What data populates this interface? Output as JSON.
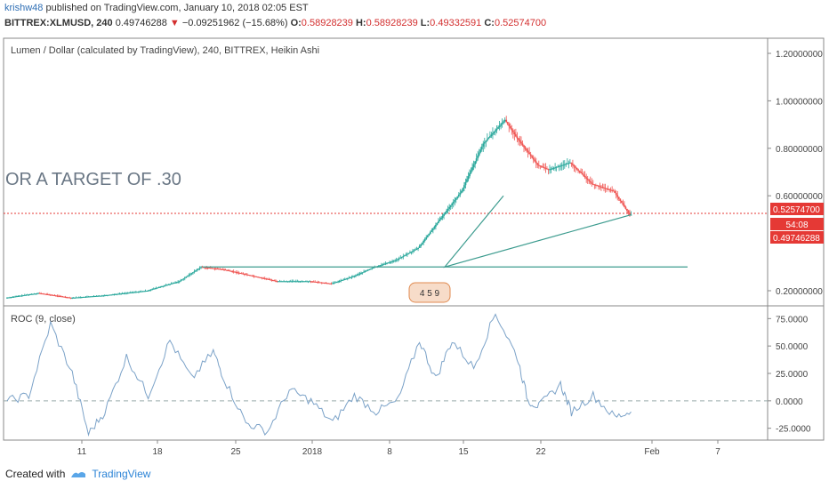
{
  "header": {
    "author": "krishw48",
    "published": "published on TradingView.com, January 10, 2018 02:05 EST",
    "symbol": "BITTREX:XLMUSD, 240",
    "last": "0.49746288",
    "change": "−0.09251962 (−15.68%)",
    "o_label": "O:",
    "o": "0.58928239",
    "h_label": "H:",
    "h": "0.58928239",
    "l_label": "L:",
    "l": "0.49332591",
    "c_label": "C:",
    "c": "0.52574700"
  },
  "colors": {
    "up": "#26a69a",
    "down": "#ef5350",
    "line": "#3d9c8f",
    "roc": "#7ba2c8",
    "price_line": "#e53935"
  },
  "overlay_text": "OR A TARGET OF .30",
  "footer": {
    "created_with": "Created with",
    "brand": "TradingView"
  },
  "chart_data": [
    {
      "type": "candlestick",
      "title": "Lumen / Dollar (calculated by TradingView), 240, BITTREX, Heikin Ashi",
      "y_ticks": [
        "1.20000000",
        "1.00000000",
        "0.80000000",
        "0.60000000",
        "0.20000000"
      ],
      "ylim": [
        0.14,
        1.26
      ],
      "x_ticks": [
        "11",
        "18",
        "25",
        "2018",
        "8",
        "15",
        "22",
        "Feb",
        "7"
      ],
      "price_labels": {
        "close": "0.52574700",
        "countdown": "54:08",
        "last": "0.49746288"
      },
      "price_line": 0.5257,
      "support_line": {
        "y": 0.3
      },
      "projection": {
        "from": 0.52,
        "low": 0.3,
        "to": 0.6
      },
      "events_badge": "4 5 9",
      "trend": [
        [
          0,
          0.17
        ],
        [
          6,
          0.19
        ],
        [
          12,
          0.17
        ],
        [
          18,
          0.18
        ],
        [
          26,
          0.2
        ],
        [
          32,
          0.24
        ],
        [
          36,
          0.3
        ],
        [
          40,
          0.29
        ],
        [
          46,
          0.26
        ],
        [
          50,
          0.24
        ],
        [
          56,
          0.24
        ],
        [
          60,
          0.23
        ],
        [
          64,
          0.26
        ],
        [
          68,
          0.3
        ],
        [
          72,
          0.33
        ],
        [
          76,
          0.38
        ],
        [
          80,
          0.5
        ],
        [
          84,
          0.62
        ],
        [
          88,
          0.82
        ],
        [
          92,
          0.92
        ],
        [
          94,
          0.85
        ],
        [
          98,
          0.73
        ],
        [
          100,
          0.71
        ],
        [
          104,
          0.74
        ],
        [
          108,
          0.65
        ],
        [
          112,
          0.62
        ],
        [
          115,
          0.52
        ]
      ]
    },
    {
      "type": "line",
      "title": "ROC (9, close)",
      "y_ticks": [
        "75.0000",
        "50.0000",
        "25.0000",
        "0.0000",
        "-25.0000"
      ],
      "ylim": [
        -35,
        85
      ],
      "zero_line": 0,
      "x": [
        0,
        4,
        8,
        12,
        15,
        18,
        22,
        26,
        30,
        34,
        38,
        40,
        44,
        48,
        52,
        56,
        60,
        64,
        68,
        72,
        76,
        79,
        82,
        86,
        90,
        94,
        96,
        98,
        102,
        104,
        108,
        112,
        115
      ],
      "values": [
        0,
        5,
        70,
        25,
        -30,
        -10,
        40,
        5,
        55,
        20,
        45,
        20,
        -20,
        -28,
        10,
        0,
        -20,
        5,
        -10,
        0,
        55,
        20,
        55,
        30,
        80,
        40,
        0,
        -5,
        15,
        -10,
        5,
        -15,
        -10
      ]
    }
  ]
}
